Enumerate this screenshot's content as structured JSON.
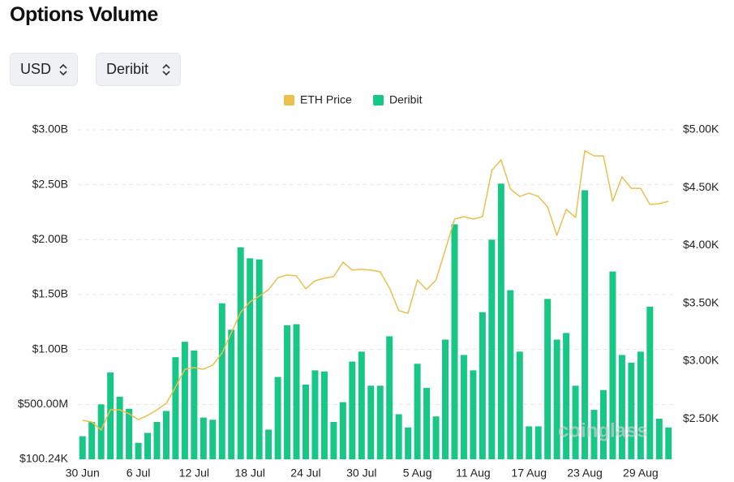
{
  "title": "Options Volume",
  "controls": [
    "USD",
    "Deribit"
  ],
  "watermark": "coinglass",
  "chart_data": {
    "type": "bar",
    "categories": [
      "30 Jun",
      null,
      null,
      null,
      null,
      null,
      "6 Jul",
      null,
      null,
      null,
      null,
      null,
      "12 Jul",
      null,
      null,
      null,
      null,
      null,
      "18 Jul",
      null,
      null,
      null,
      null,
      null,
      "24 Jul",
      null,
      null,
      null,
      null,
      null,
      "30 Jul",
      null,
      null,
      null,
      null,
      null,
      "5 Aug",
      null,
      null,
      null,
      null,
      null,
      "11 Aug",
      null,
      null,
      null,
      null,
      null,
      "17 Aug",
      null,
      null,
      null,
      null,
      null,
      "23 Aug",
      null,
      null,
      null,
      null,
      null,
      "29 Aug",
      null,
      null,
      null
    ],
    "series": [
      {
        "name": "ETH Price",
        "type": "line",
        "color": "#ecbf4f",
        "axis": "y2",
        "values": [
          2487,
          2473,
          2403,
          2578,
          2578,
          2543,
          2494,
          2529,
          2578,
          2634,
          2775,
          2929,
          2943,
          2929,
          2964,
          3070,
          3245,
          3421,
          3512,
          3561,
          3617,
          3722,
          3744,
          3737,
          3624,
          3694,
          3716,
          3730,
          3856,
          3786,
          3793,
          3786,
          3772,
          3631,
          3435,
          3413,
          3701,
          3617,
          3701,
          3961,
          4228,
          4249,
          4228,
          4249,
          4649,
          4740,
          4488,
          4424,
          4452,
          4424,
          4333,
          4087,
          4312,
          4242,
          4818,
          4775,
          4775,
          4382,
          4593,
          4494,
          4494,
          4354,
          4361,
          4382
        ]
      },
      {
        "name": "Deribit",
        "type": "bar",
        "color": "#18c786",
        "values": [
          210000000,
          340000000,
          500000000,
          790000000,
          570000000,
          460000000,
          150000000,
          240000000,
          340000000,
          440000000,
          930000000,
          1070000000,
          990000000,
          380000000,
          360000000,
          1420000000,
          1180000000,
          1930000000,
          1830000000,
          1820000000,
          270000000,
          750000000,
          1220000000,
          1230000000,
          680000000,
          810000000,
          800000000,
          340000000,
          520000000,
          890000000,
          980000000,
          670000000,
          670000000,
          1120000000,
          410000000,
          290000000,
          870000000,
          650000000,
          390000000,
          1090000000,
          2140000000,
          950000000,
          810000000,
          1340000000,
          2000000000,
          2510000000,
          1540000000,
          980000000,
          300000000,
          300000000,
          1460000000,
          1090000000,
          1150000000,
          670000000,
          2450000000,
          450000000,
          630000000,
          1710000000,
          950000000,
          880000000,
          980000000,
          1390000000,
          370000000,
          290000000
        ]
      }
    ],
    "ylim": [
      100240,
      3000000000
    ],
    "yticks": [
      {
        "value": 100240,
        "label": "$100.24K"
      },
      {
        "value": 500000000,
        "label": "$500.00M"
      },
      {
        "value": 1000000000,
        "label": "$1.00B"
      },
      {
        "value": 1500000000,
        "label": "$1.50B"
      },
      {
        "value": 2000000000,
        "label": "$2.00B"
      },
      {
        "value": 2500000000,
        "label": "$2.50B"
      },
      {
        "value": 3000000000,
        "label": "$3.00B"
      }
    ],
    "y2lim": [
      2150,
      5000
    ],
    "y2ticks": [
      {
        "value": 2500,
        "label": "$2.50K"
      },
      {
        "value": 3000,
        "label": "$3.00K"
      },
      {
        "value": 3500,
        "label": "$3.50K"
      },
      {
        "value": 4000,
        "label": "$4.00K"
      },
      {
        "value": 4500,
        "label": "$4.50K"
      },
      {
        "value": 5000,
        "label": "$5.00K"
      }
    ],
    "grid": true,
    "legend": "top"
  }
}
